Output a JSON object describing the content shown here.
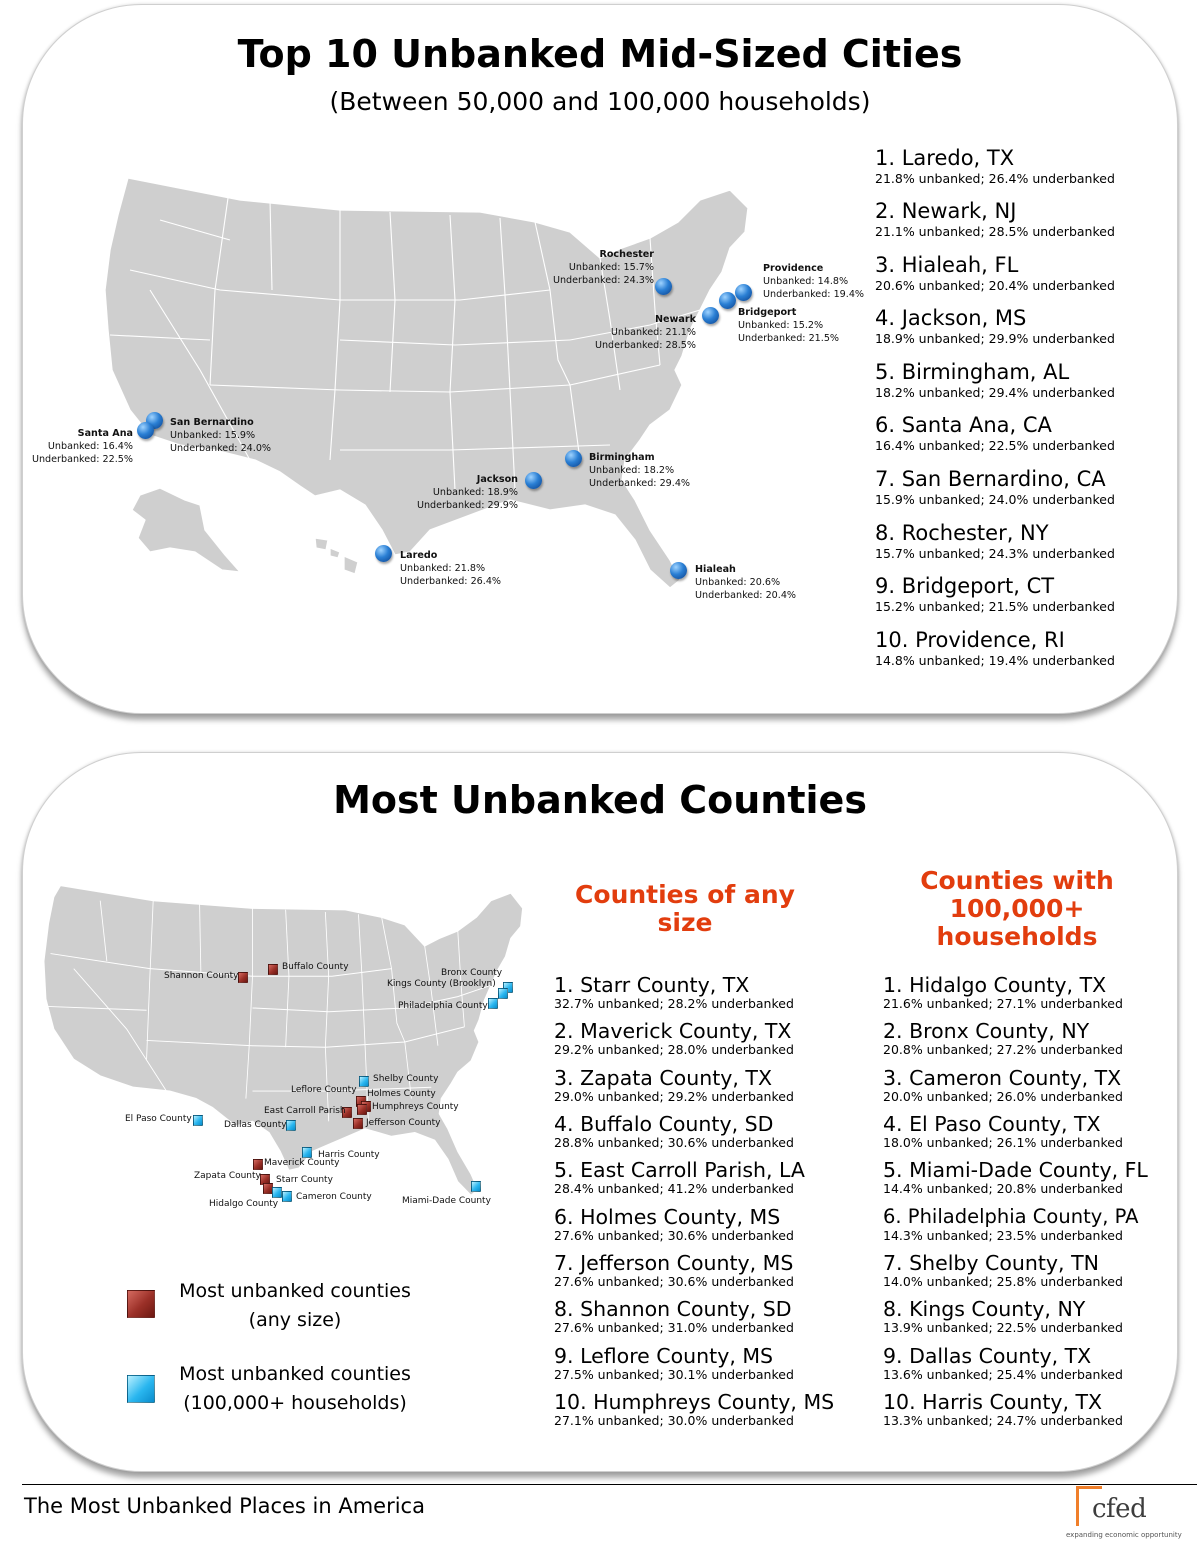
{
  "top": {
    "title": "Top 10 Unbanked Mid-Sized Cities",
    "subtitle": "(Between 50,000 and 100,000 households)",
    "map_labels": [
      {
        "name": "Rochester",
        "l1": "Unbanked: 15.7%",
        "l2": "Underbanked: 24.3%"
      },
      {
        "name": "Providence",
        "l1": "Unbanked: 14.8%",
        "l2": "Underbanked: 19.4%"
      },
      {
        "name": "Newark",
        "l1": "Unbanked: 21.1%",
        "l2": "Underbanked: 28.5%"
      },
      {
        "name": "Bridgeport",
        "l1": "Unbanked: 15.2%",
        "l2": "Underbanked: 21.5%"
      },
      {
        "name": "Santa Ana",
        "l1": "Unbanked: 16.4%",
        "l2": "Underbanked: 22.5%"
      },
      {
        "name": "San Bernardino",
        "l1": "Unbanked: 15.9%",
        "l2": "Underbanked: 24.0%"
      },
      {
        "name": "Birmingham",
        "l1": "Unbanked: 18.2%",
        "l2": "Underbanked: 29.4%"
      },
      {
        "name": "Jackson",
        "l1": "Unbanked: 18.9%",
        "l2": "Underbanked: 29.9%"
      },
      {
        "name": "Laredo",
        "l1": "Unbanked: 21.8%",
        "l2": "Underbanked: 26.4%"
      },
      {
        "name": "Hialeah",
        "l1": "Unbanked: 20.6%",
        "l2": "Underbanked: 20.4%"
      }
    ],
    "ranking": [
      {
        "city": "1. Laredo, TX",
        "stats": "21.8% unbanked; 26.4% underbanked"
      },
      {
        "city": "2. Newark, NJ",
        "stats": "21.1% unbanked; 28.5% underbanked"
      },
      {
        "city": "3. Hialeah, FL",
        "stats": "20.6% unbanked; 20.4% underbanked"
      },
      {
        "city": "4. Jackson, MS",
        "stats": "18.9% unbanked; 29.9% underbanked"
      },
      {
        "city": "5. Birmingham, AL",
        "stats": "18.2% unbanked; 29.4% underbanked"
      },
      {
        "city": "6. Santa Ana, CA",
        "stats": "16.4% unbanked; 22.5% underbanked"
      },
      {
        "city": "7. San Bernardino, CA",
        "stats": "15.9% unbanked; 24.0% underbanked"
      },
      {
        "city": "8. Rochester, NY",
        "stats": "15.7% unbanked; 24.3% underbanked"
      },
      {
        "city": "9. Bridgeport, CT",
        "stats": "15.2% unbanked; 21.5% underbanked"
      },
      {
        "city": "10. Providence, RI",
        "stats": "14.8% unbanked; 19.4% underbanked"
      }
    ]
  },
  "bottom": {
    "title": "Most Unbanked Counties",
    "map_labels": {
      "shannon": "Shannon County",
      "buffalo": "Buffalo County",
      "bronx": "Bronx County",
      "kings": "Kings County (Brooklyn)",
      "philadelphia": "Philadelphia County",
      "shelby": "Shelby County",
      "leflore": "Leflore County",
      "holmes": "Holmes County",
      "eastcarroll": "East Carroll Parish",
      "humphreys": "Humphreys County",
      "elpaso": "El Paso County",
      "dallas": "Dallas County",
      "jefferson": "Jefferson County",
      "harris": "Harris County",
      "maverick": "Maverick County",
      "zapata": "Zapata County",
      "starr": "Starr County",
      "cameron": "Cameron County",
      "hidalgo": "Hidalgo County",
      "miamidade": "Miami-Dade County"
    },
    "col_any_heading": "Counties of any size",
    "col_large_heading": "Counties with 100,000+ households",
    "any_size": [
      {
        "county": "1. Starr County, TX",
        "stats": "32.7% unbanked; 28.2% underbanked"
      },
      {
        "county": "2. Maverick County, TX",
        "stats": "29.2% unbanked; 28.0% underbanked"
      },
      {
        "county": "3. Zapata County, TX",
        "stats": "29.0% unbanked; 29.2% underbanked"
      },
      {
        "county": "4. Buffalo County, SD",
        "stats": "28.8% unbanked; 30.6% underbanked"
      },
      {
        "county": "5. East Carroll Parish, LA",
        "stats": "28.4% unbanked; 41.2% underbanked"
      },
      {
        "county": "6. Holmes County, MS",
        "stats": "27.6% unbanked; 30.6% underbanked"
      },
      {
        "county": "7. Jefferson County, MS",
        "stats": "27.6% unbanked; 30.6% underbanked"
      },
      {
        "county": "8. Shannon County, SD",
        "stats": "27.6% unbanked; 31.0% underbanked"
      },
      {
        "county": "9. Leflore County, MS",
        "stats": "27.5% unbanked; 30.1% underbanked"
      },
      {
        "county": "10. Humphreys County, MS",
        "stats": "27.1% unbanked; 30.0% underbanked"
      }
    ],
    "large": [
      {
        "county": "1. Hidalgo County, TX",
        "stats": "21.6% unbanked; 27.1% underbanked"
      },
      {
        "county": "2. Bronx County, NY",
        "stats": "20.8% unbanked; 27.2% underbanked"
      },
      {
        "county": "3. Cameron County, TX",
        "stats": "20.0% unbanked; 26.0% underbanked"
      },
      {
        "county": "4. El Paso County, TX",
        "stats": "18.0% unbanked; 26.1% underbanked"
      },
      {
        "county": "5. Miami-Dade County, FL",
        "stats": "14.4% unbanked; 20.8% underbanked"
      },
      {
        "county": "6. Philadelphia County, PA",
        "stats": "14.3% unbanked; 23.5% underbanked"
      },
      {
        "county": "7. Shelby County, TN",
        "stats": "14.0% unbanked; 25.8% underbanked"
      },
      {
        "county": "8. Kings County, NY",
        "stats": "13.9% unbanked; 22.5% underbanked"
      },
      {
        "county": "9. Dallas County, TX",
        "stats": "13.6% unbanked; 25.4% underbanked"
      },
      {
        "county": "10. Harris County, TX",
        "stats": "13.3% unbanked; 24.7% underbanked"
      }
    ],
    "legend": {
      "red_line1": "Most unbanked counties",
      "red_line2": "(any size)",
      "blue_line1": "Most unbanked counties",
      "blue_line2": "(100,000+ households)"
    }
  },
  "footer": {
    "text": "The Most Unbanked Places in America",
    "logo_name": "cfed",
    "logo_tagline": "expanding economic opportunity"
  },
  "colors": {
    "accent_heading": "#e23d0e",
    "map_fill": "#cfcfcf",
    "marker_blue": "#2a7fd4",
    "marker_red": "#9a2f27",
    "marker_cyan": "#29b6ef",
    "logo_orange": "#f07f2a"
  },
  "icons": [
    "city-marker-icon",
    "county-marker-red-icon",
    "county-marker-blue-icon",
    "cfed-logo"
  ]
}
